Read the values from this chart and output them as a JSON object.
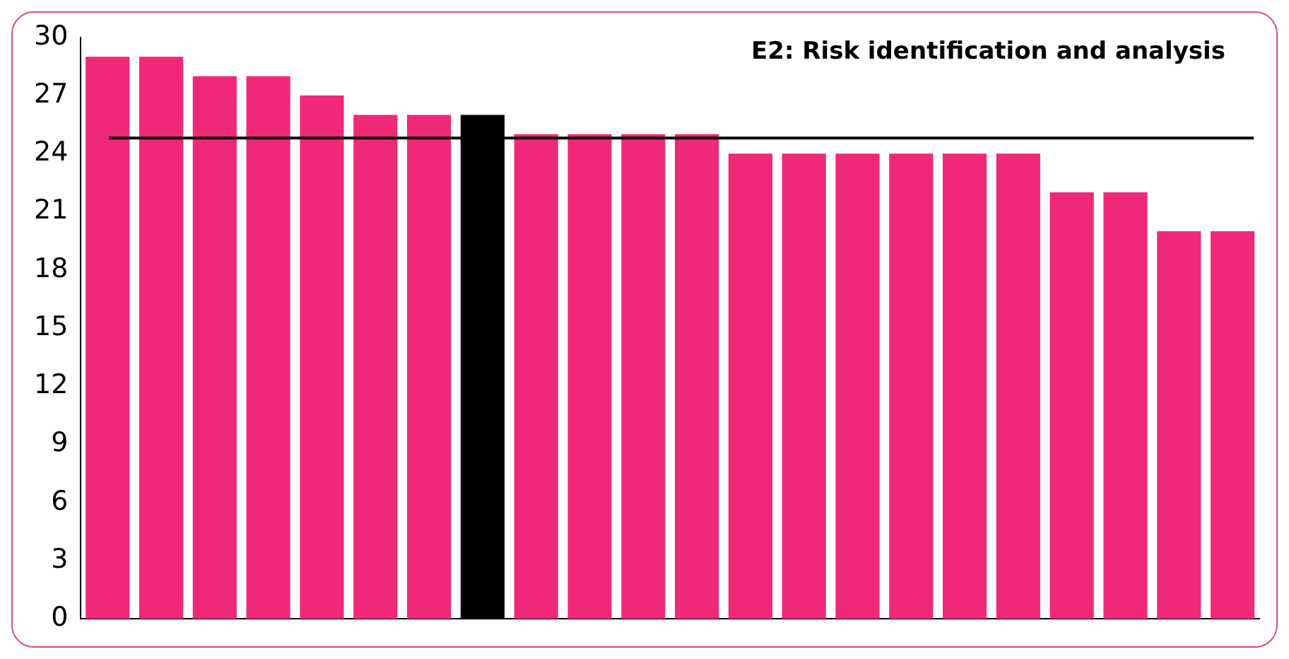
{
  "chart_data": {
    "type": "bar",
    "title": "E2: Risk identification and analysis",
    "categories": [
      null,
      null,
      null,
      null,
      null,
      null,
      null,
      null,
      null,
      null,
      null,
      null,
      null,
      null,
      null,
      null,
      null,
      null,
      null,
      null,
      null,
      null
    ],
    "values": [
      29,
      29,
      28,
      28,
      27,
      26,
      26,
      26,
      25,
      25,
      25,
      25,
      24,
      24,
      24,
      24,
      24,
      24,
      22,
      22,
      20,
      20
    ],
    "colors": [
      "#f0287a",
      "#f0287a",
      "#f0287a",
      "#f0287a",
      "#f0287a",
      "#f0287a",
      "#f0287a",
      "#000000",
      "#f0287a",
      "#f0287a",
      "#f0287a",
      "#f0287a",
      "#f0287a",
      "#f0287a",
      "#f0287a",
      "#f0287a",
      "#f0287a",
      "#f0287a",
      "#f0287a",
      "#f0287a",
      "#f0287a",
      "#f0287a"
    ],
    "ylim": [
      0,
      30
    ],
    "yticks": [
      0,
      3,
      6,
      9,
      12,
      15,
      18,
      21,
      24,
      27,
      30
    ],
    "grid": false,
    "legend": false,
    "ref_lines": [
      {
        "axis": "y",
        "value": 24.8,
        "color": "#000000"
      }
    ]
  }
}
